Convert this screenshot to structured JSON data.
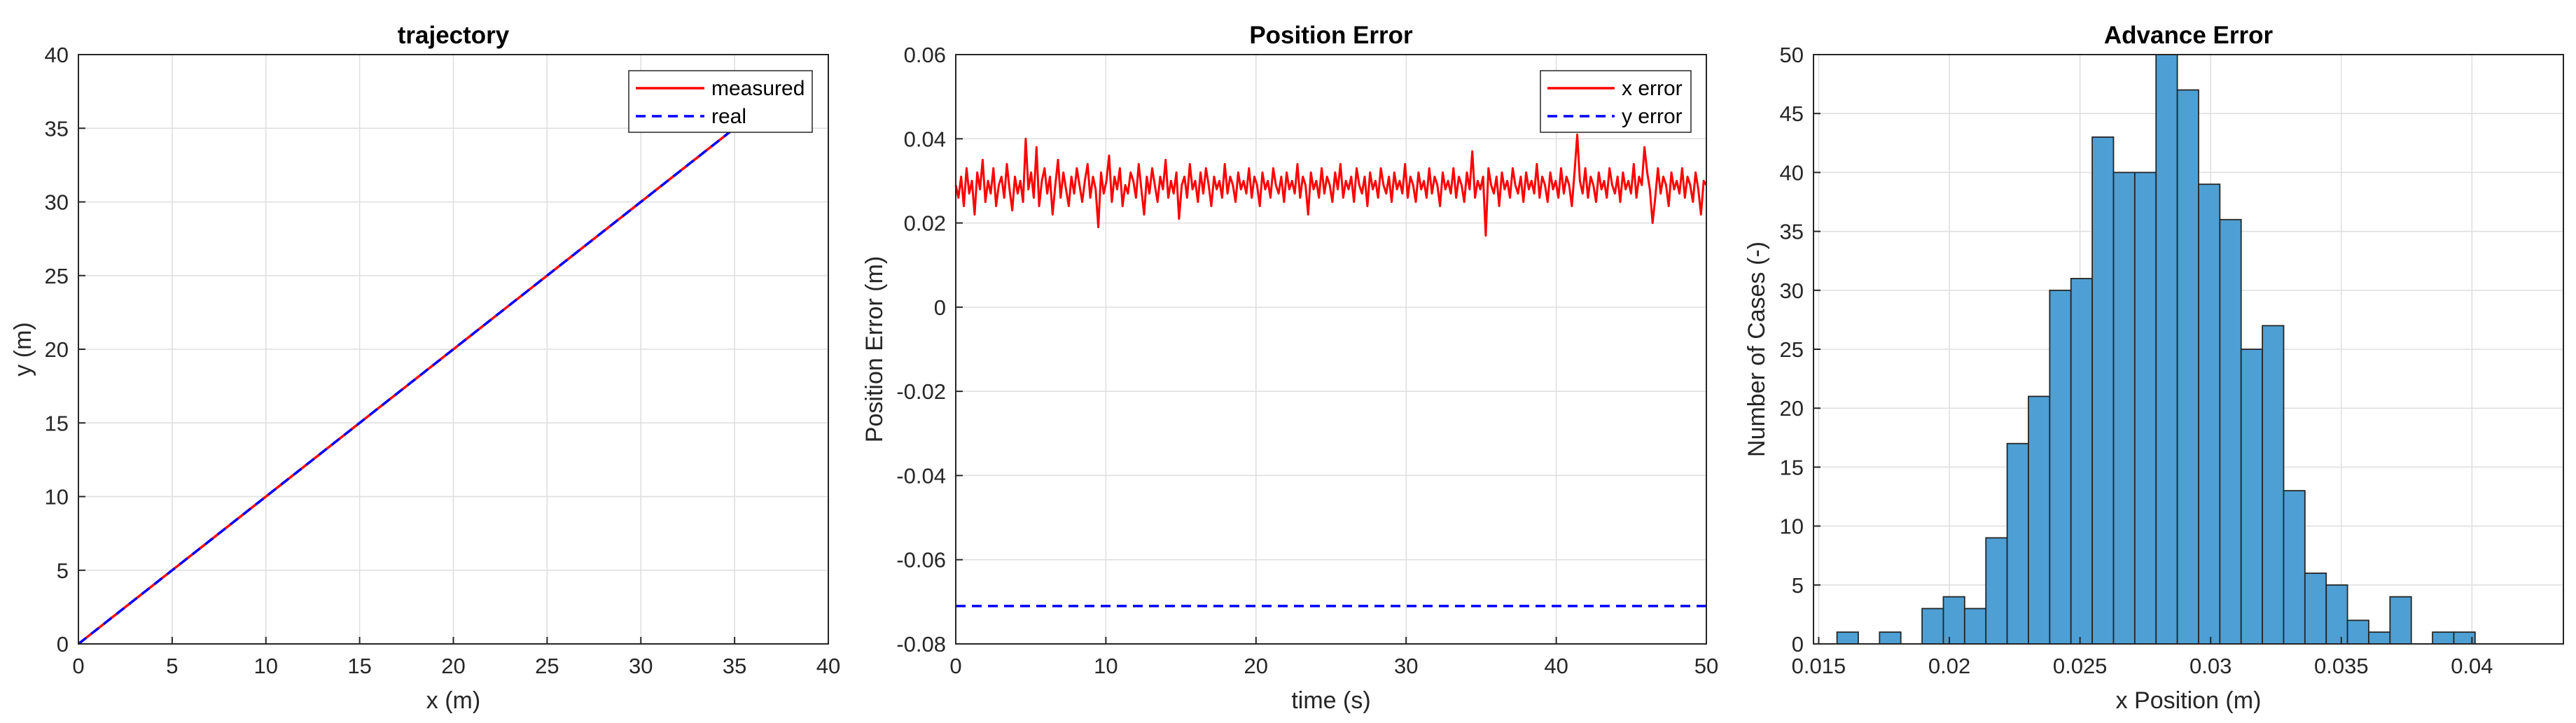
{
  "chart_data": [
    {
      "type": "line",
      "title": "trajectory",
      "xlabel": "x (m)",
      "ylabel": "y (m)",
      "xlim": [
        0,
        40
      ],
      "ylim": [
        0,
        40
      ],
      "xticks": [
        0,
        5,
        10,
        15,
        20,
        25,
        30,
        35,
        40
      ],
      "yticks": [
        0,
        5,
        10,
        15,
        20,
        25,
        30,
        35,
        40
      ],
      "grid": true,
      "legend_position": "top-right",
      "series": [
        {
          "name": "measured",
          "color": "#ff0000",
          "style": "solid",
          "x": [
            0,
            36
          ],
          "y": [
            0,
            36
          ]
        },
        {
          "name": "real",
          "color": "#0000ff",
          "style": "dashed",
          "x": [
            0,
            36
          ],
          "y": [
            0,
            36
          ]
        }
      ]
    },
    {
      "type": "line",
      "title": "Position Error",
      "xlabel": "time (s)",
      "ylabel": "Position Error (m)",
      "xlim": [
        0,
        50
      ],
      "ylim": [
        -0.08,
        0.06
      ],
      "xticks": [
        0,
        10,
        20,
        30,
        40,
        50
      ],
      "yticks": [
        -0.08,
        -0.06,
        -0.04,
        -0.02,
        0,
        0.02,
        0.04,
        0.06
      ],
      "grid": true,
      "legend_position": "top-right",
      "series": [
        {
          "name": "x error",
          "color": "#ff0000",
          "style": "solid",
          "x_range": [
            0,
            50
          ],
          "values": [
            0.029,
            0.026,
            0.031,
            0.024,
            0.033,
            0.027,
            0.03,
            0.022,
            0.032,
            0.028,
            0.035,
            0.025,
            0.03,
            0.027,
            0.033,
            0.024,
            0.029,
            0.031,
            0.026,
            0.034,
            0.028,
            0.023,
            0.031,
            0.027,
            0.03,
            0.025,
            0.04,
            0.028,
            0.032,
            0.026,
            0.038,
            0.024,
            0.03,
            0.033,
            0.027,
            0.031,
            0.022,
            0.029,
            0.035,
            0.026,
            0.032,
            0.028,
            0.024,
            0.031,
            0.027,
            0.033,
            0.029,
            0.025,
            0.03,
            0.034,
            0.026,
            0.031,
            0.028,
            0.019,
            0.032,
            0.027,
            0.03,
            0.036,
            0.025,
            0.031,
            0.028,
            0.033,
            0.024,
            0.029,
            0.027,
            0.032,
            0.03,
            0.026,
            0.034,
            0.028,
            0.022,
            0.031,
            0.027,
            0.033,
            0.029,
            0.025,
            0.031,
            0.028,
            0.035,
            0.026,
            0.03,
            0.027,
            0.032,
            0.021,
            0.029,
            0.031,
            0.026,
            0.034,
            0.028,
            0.03,
            0.025,
            0.032,
            0.027,
            0.033,
            0.029,
            0.024,
            0.031,
            0.028,
            0.03,
            0.026,
            0.034,
            0.027,
            0.031,
            0.029,
            0.025,
            0.032,
            0.028,
            0.03,
            0.027,
            0.033,
            0.026,
            0.031,
            0.029,
            0.024,
            0.032,
            0.028,
            0.03,
            0.026,
            0.033,
            0.029,
            0.027,
            0.031,
            0.025,
            0.032,
            0.028,
            0.03,
            0.027,
            0.034,
            0.026,
            0.031,
            0.029,
            0.022,
            0.032,
            0.028,
            0.03,
            0.026,
            0.033,
            0.027,
            0.031,
            0.029,
            0.025,
            0.032,
            0.028,
            0.034,
            0.026,
            0.03,
            0.028,
            0.031,
            0.025,
            0.033,
            0.029,
            0.027,
            0.031,
            0.024,
            0.032,
            0.028,
            0.03,
            0.026,
            0.033,
            0.029,
            0.027,
            0.031,
            0.025,
            0.032,
            0.028,
            0.03,
            0.027,
            0.034,
            0.026,
            0.031,
            0.029,
            0.025,
            0.032,
            0.028,
            0.03,
            0.026,
            0.033,
            0.027,
            0.031,
            0.029,
            0.024,
            0.032,
            0.028,
            0.03,
            0.027,
            0.033,
            0.026,
            0.031,
            0.029,
            0.025,
            0.032,
            0.028,
            0.037,
            0.026,
            0.03,
            0.028,
            0.031,
            0.017,
            0.033,
            0.029,
            0.027,
            0.031,
            0.024,
            0.032,
            0.028,
            0.03,
            0.026,
            0.033,
            0.029,
            0.027,
            0.031,
            0.025,
            0.032,
            0.028,
            0.03,
            0.027,
            0.034,
            0.026,
            0.031,
            0.029,
            0.025,
            0.032,
            0.028,
            0.03,
            0.026,
            0.033,
            0.027,
            0.031,
            0.029,
            0.024,
            0.032,
            0.041,
            0.03,
            0.027,
            0.033,
            0.026,
            0.031,
            0.029,
            0.025,
            0.032,
            0.028,
            0.03,
            0.026,
            0.033,
            0.029,
            0.027,
            0.031,
            0.025,
            0.032,
            0.028,
            0.03,
            0.027,
            0.034,
            0.026,
            0.031,
            0.029,
            0.038,
            0.032,
            0.028,
            0.02,
            0.026,
            0.033,
            0.027,
            0.031,
            0.029,
            0.024,
            0.032,
            0.028,
            0.03,
            0.027,
            0.033,
            0.026,
            0.031,
            0.029,
            0.025,
            0.032,
            0.028,
            0.022,
            0.03,
            0.029
          ]
        },
        {
          "name": "y error",
          "color": "#0000ff",
          "style": "dashed",
          "x": [
            0,
            50
          ],
          "y": [
            -0.071,
            -0.071
          ]
        }
      ]
    },
    {
      "type": "bar",
      "title": "Advance Error",
      "xlabel": "x Position (m)",
      "ylabel": "Number of Cases (-)",
      "xlim": [
        0.0148,
        0.0435
      ],
      "ylim": [
        0,
        50
      ],
      "xticks": [
        0.015,
        0.02,
        0.025,
        0.03,
        0.035,
        0.04
      ],
      "xtick_labels": [
        "0.015",
        "0.02",
        "0.025",
        "0.03",
        "0.035",
        "0.04"
      ],
      "yticks": [
        0,
        5,
        10,
        15,
        20,
        25,
        30,
        35,
        40,
        45,
        50
      ],
      "grid": true,
      "bar_color": "#4e9fd4",
      "bin_start": 0.0157,
      "bin_width": 0.000814,
      "values": [
        1,
        0,
        1,
        0,
        3,
        4,
        3,
        9,
        17,
        21,
        30,
        31,
        43,
        40,
        40,
        50,
        47,
        39,
        36,
        25,
        27,
        13,
        6,
        5,
        2,
        1,
        4,
        0,
        1,
        1
      ]
    }
  ]
}
